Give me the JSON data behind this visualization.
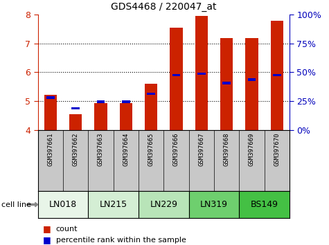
{
  "title": "GDS4468 / 220047_at",
  "samples": [
    "GSM397661",
    "GSM397662",
    "GSM397663",
    "GSM397664",
    "GSM397665",
    "GSM397666",
    "GSM397667",
    "GSM397668",
    "GSM397669",
    "GSM397670"
  ],
  "cell_line_groups": [
    {
      "name": "LN018",
      "start": 0,
      "end": 1,
      "color": "#e8f5e8"
    },
    {
      "name": "LN215",
      "start": 2,
      "end": 3,
      "color": "#d4eed4"
    },
    {
      "name": "LN229",
      "start": 4,
      "end": 5,
      "color": "#b8e4b8"
    },
    {
      "name": "LN319",
      "start": 6,
      "end": 7,
      "color": "#6ecf6e"
    },
    {
      "name": "BS149",
      "start": 8,
      "end": 9,
      "color": "#44c044"
    }
  ],
  "count_values": [
    5.22,
    4.55,
    4.92,
    4.92,
    5.6,
    7.55,
    7.96,
    7.2,
    7.18,
    7.8
  ],
  "percentile_values": [
    5.12,
    4.75,
    4.97,
    4.97,
    5.25,
    5.9,
    5.95,
    5.62,
    5.75,
    5.9
  ],
  "ylim": [
    4.0,
    8.0
  ],
  "yticks_left": [
    4,
    5,
    6,
    7,
    8
  ],
  "yticks_right": [
    0,
    25,
    50,
    75,
    100
  ],
  "bar_width": 0.5,
  "count_color": "#cc2200",
  "percentile_color": "#0000cc",
  "axis_color_left": "#cc2200",
  "axis_color_right": "#0000bb",
  "grid_ticks": [
    5,
    6,
    7
  ],
  "sample_bg_color": "#c8c8c8",
  "legend_count_color": "#cc2200",
  "legend_pct_color": "#0000cc"
}
